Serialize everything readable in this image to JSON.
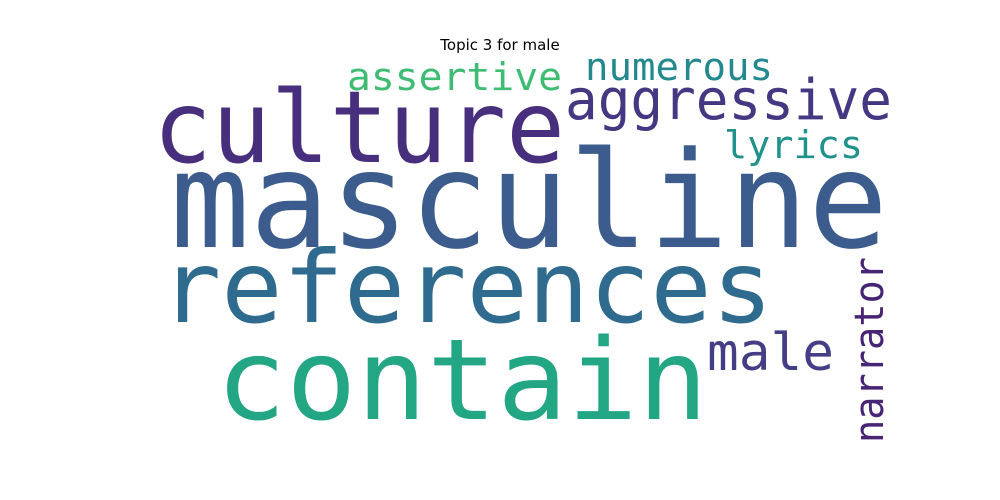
{
  "chart_data": {
    "type": "wordcloud",
    "title": "Topic 3 for male",
    "words": [
      {
        "text": "masculine",
        "color": "#3b5c8c"
      },
      {
        "text": "culture",
        "color": "#472f7d"
      },
      {
        "text": "references",
        "color": "#2f6b8e"
      },
      {
        "text": "contain",
        "color": "#22a684"
      },
      {
        "text": "aggressive",
        "color": "#453781"
      },
      {
        "text": "numerous",
        "color": "#23898e"
      },
      {
        "text": "assertive",
        "color": "#3fbc73"
      },
      {
        "text": "lyrics",
        "color": "#21918c"
      },
      {
        "text": "male",
        "color": "#433e85"
      },
      {
        "text": "narrator",
        "color": "#482475"
      }
    ]
  }
}
